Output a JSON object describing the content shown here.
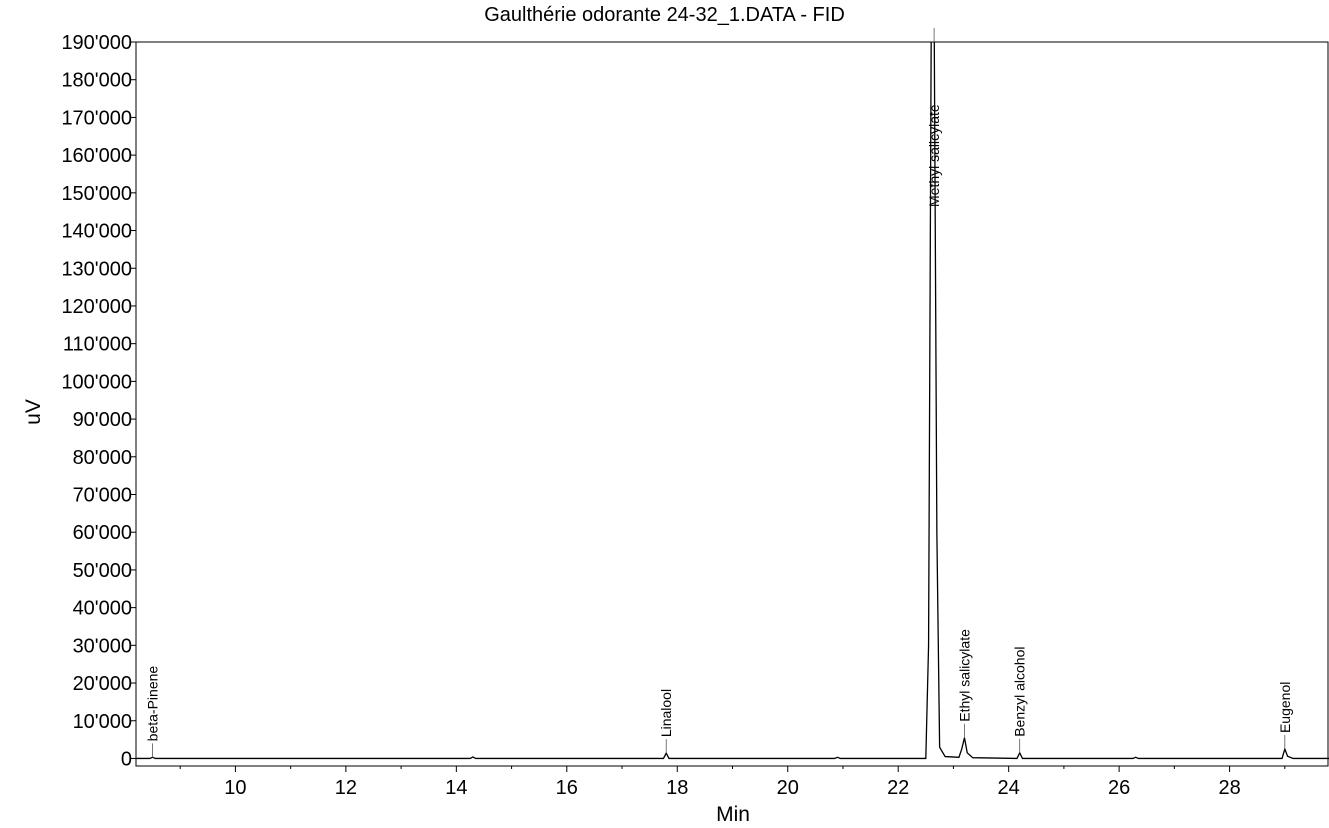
{
  "chart_data": {
    "type": "line",
    "title": "Gaulthérie odorante 24-32_1.DATA - FID",
    "xlabel": "Min",
    "ylabel": "uV",
    "xlim": [
      8.2,
      29.8
    ],
    "ylim": [
      -2000,
      190000
    ],
    "x_ticks": [
      10,
      12,
      14,
      16,
      18,
      20,
      22,
      24,
      26,
      28
    ],
    "x_tick_labels": [
      "10",
      "12",
      "14",
      "16",
      "18",
      "20",
      "22",
      "24",
      "26",
      "28"
    ],
    "y_ticks": [
      0,
      10000,
      20000,
      30000,
      40000,
      50000,
      60000,
      70000,
      80000,
      90000,
      100000,
      110000,
      120000,
      130000,
      140000,
      150000,
      160000,
      170000,
      180000,
      190000
    ],
    "y_tick_labels": [
      "0",
      "10'000",
      "20'000",
      "30'000",
      "40'000",
      "50'000",
      "60'000",
      "70'000",
      "80'000",
      "90'000",
      "100'000",
      "110'000",
      "120'000",
      "130'000",
      "140'000",
      "150'000",
      "160'000",
      "170'000",
      "180'000",
      "190'000"
    ],
    "grid": false,
    "line_color": "#000000",
    "series": [
      {
        "x": [
          8.2,
          8.45,
          8.5,
          8.55,
          14.25,
          14.3,
          14.35,
          17.75,
          17.8,
          17.85,
          20.85,
          20.9,
          20.95,
          22.5,
          22.55,
          22.6,
          22.65,
          22.7,
          22.75,
          22.85,
          23.1,
          23.15,
          23.2,
          23.25,
          23.35,
          24.15,
          24.2,
          24.25,
          26.25,
          26.3,
          26.35,
          28.95,
          29.0,
          29.05,
          29.15,
          29.8
        ],
        "y": [
          0,
          0,
          300,
          0,
          0,
          400,
          0,
          0,
          1400,
          0,
          0,
          300,
          0,
          0,
          30000,
          200000,
          200000,
          60000,
          3000,
          500,
          300,
          2500,
          5500,
          1500,
          200,
          0,
          1500,
          0,
          0,
          300,
          0,
          0,
          2500,
          600,
          0,
          0
        ]
      }
    ],
    "peaks": [
      {
        "label": "beta-Pinene",
        "x": 8.5,
        "y": 300
      },
      {
        "label": "Linalool",
        "x": 17.8,
        "y": 1400
      },
      {
        "label": "Methyl salicylate",
        "x": 22.65,
        "y": 190000
      },
      {
        "label": "Ethyl salicylate",
        "x": 23.2,
        "y": 5500
      },
      {
        "label": "Benzyl alcohol",
        "x": 24.2,
        "y": 1500
      },
      {
        "label": "Eugenol",
        "x": 29.0,
        "y": 2500
      }
    ]
  }
}
